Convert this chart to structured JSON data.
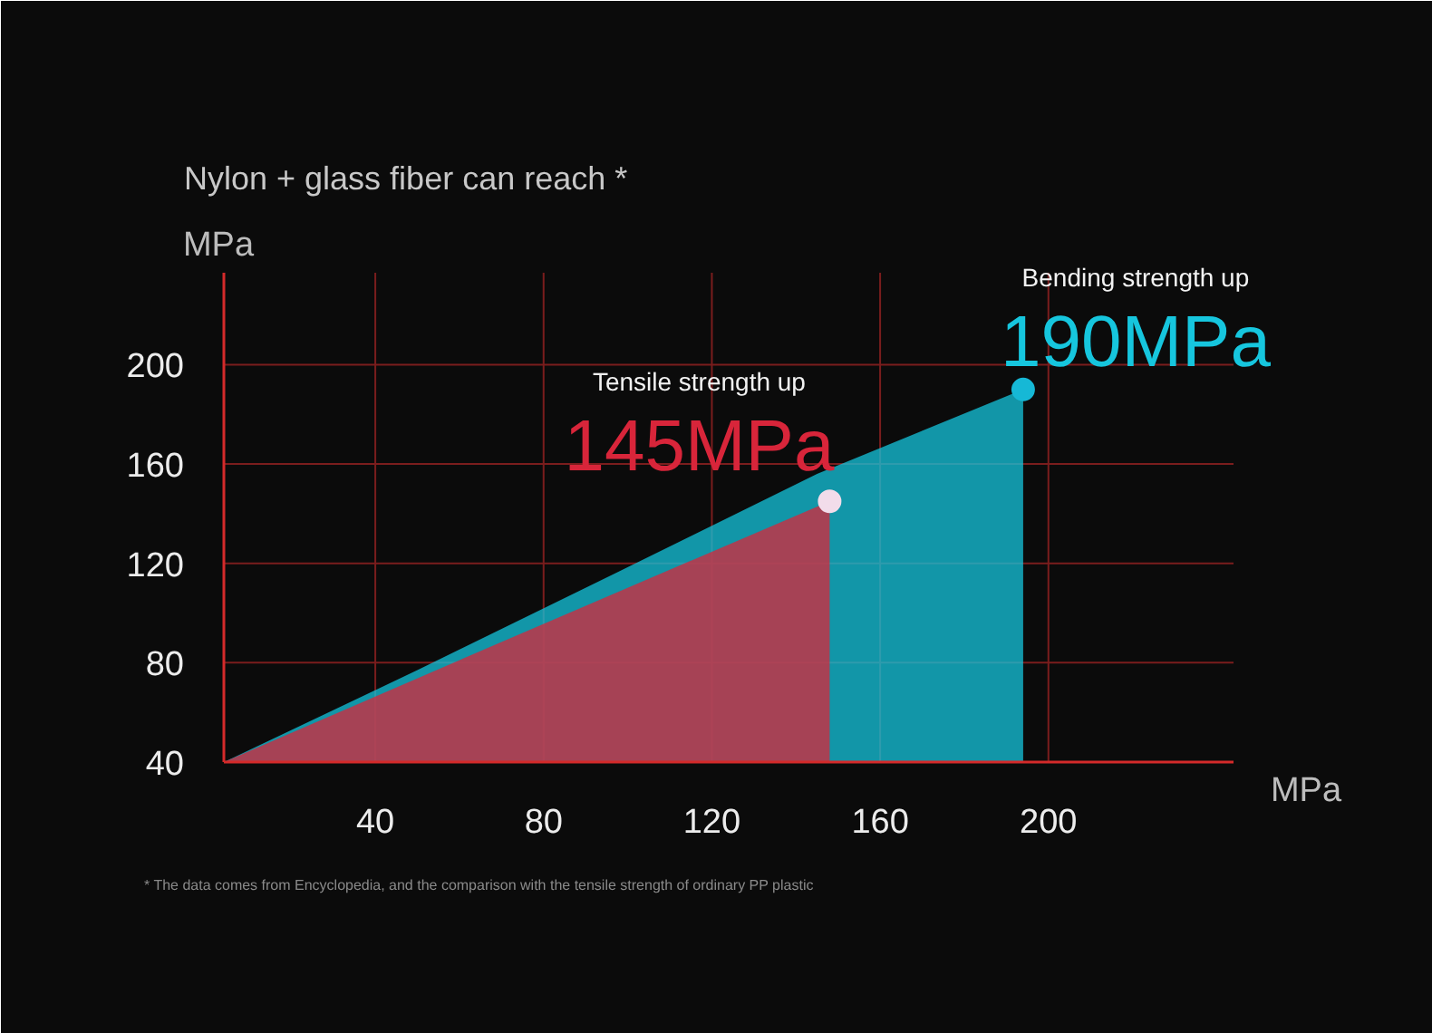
{
  "chart_data": {
    "type": "area",
    "title": "Nylon + glass fiber can reach *",
    "xlabel": "MPa",
    "ylabel": "MPa",
    "xlim": [
      4,
      244
    ],
    "ylim": [
      40,
      237
    ],
    "xticks": [
      40,
      80,
      120,
      160,
      200
    ],
    "yticks": [
      40,
      80,
      120,
      160,
      200
    ],
    "grid": true,
    "series": [
      {
        "color": "#16c6de",
        "x": [
          4,
          50,
          97,
          145,
          194
        ],
        "values": [
          40,
          77,
          116,
          156,
          190
        ]
      },
      {
        "color": "#d8253a",
        "x": [
          4,
          75,
          148
        ],
        "values": [
          40,
          92,
          145
        ]
      },
      {
        "type": "scatter",
        "color": "#f2dcea",
        "x": [
          148
        ],
        "values": [
          145
        ]
      },
      {
        "type": "scatter",
        "color": "#16b8d6",
        "x": [
          194
        ],
        "values": [
          190
        ]
      }
    ],
    "annotations": [
      "Tensile strength up",
      {
        "text": "145MPa",
        "x": 148,
        "y": 145
      },
      "Bending strength up",
      {
        "text": "190MPa",
        "x": 194,
        "y": 190
      },
      "* The data comes from Encyclopedia, and the comparison with the tensile strength of ordinary PP plastic"
    ]
  }
}
